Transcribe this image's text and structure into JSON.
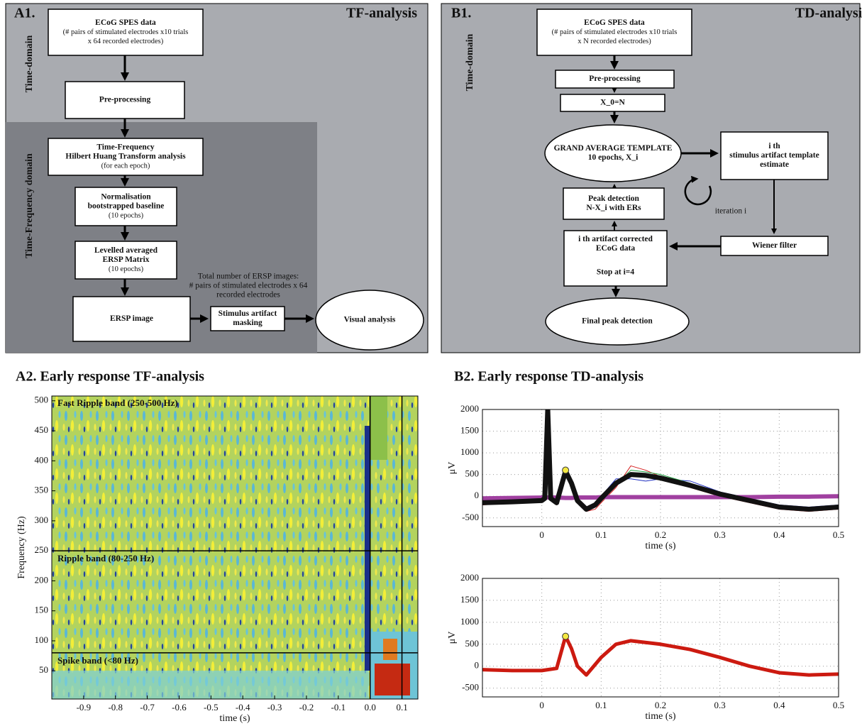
{
  "a1": {
    "label": "A1.",
    "title": "TF-analysis",
    "regions": [
      "Time-domain",
      "Time-Frequency domain"
    ],
    "nodes": [
      [
        "ECoG SPES data",
        "(# pairs of stimulated electrodes x10 trials",
        "x 64 recorded electrodes)"
      ],
      [
        "Pre-processing"
      ],
      [
        "Time-Frequency",
        "Hilbert Huang Transform analysis",
        "(for each epoch)"
      ],
      [
        "Normalisation",
        "bootstrapped  baseline",
        "(10 epochs)"
      ],
      [
        "Levelled averaged",
        "ERSP Matrix",
        "(10 epochs)"
      ],
      [
        "ERSP image"
      ],
      [
        "Stimulus artifact",
        "masking"
      ],
      [
        "Visual analysis"
      ]
    ],
    "note": [
      "Total number of ERSP images:",
      "# pairs of stimulated electrodes x 64",
      "recorded electrodes"
    ]
  },
  "b1": {
    "label": "B1.",
    "title": "TD-analysis",
    "regions": [
      "Time-domain"
    ],
    "nodes": [
      [
        "ECoG SPES data",
        "(# pairs of stimulated electrodes x10 trials",
        "x N recorded electrodes)"
      ],
      [
        "Pre-processing"
      ],
      [
        "X_0=N"
      ],
      [
        "GRAND AVERAGE TEMPLATE",
        "10 epochs, X_i"
      ],
      [
        "i th",
        "stimulus artifact template",
        "estimate"
      ],
      [
        "Peak detection",
        "N-X_i with ERs"
      ],
      [
        "i th artifact corrected",
        "ECoG data"
      ],
      [
        "Stop  at i=4"
      ],
      [
        "Wiener filter"
      ],
      [
        "Final peak detection"
      ]
    ],
    "annotation": "iteration i"
  },
  "chart_data": [
    {
      "type": "heatmap",
      "title": "A2.  Early response TF-analysis",
      "xlabel": "time (s)",
      "ylabel": "Frequency (Hz)",
      "xlim": [
        -1,
        0.15
      ],
      "ylim": [
        3,
        508
      ],
      "xticks": [
        -0.9,
        -0.8,
        -0.7,
        -0.6,
        -0.5,
        -0.4,
        -0.3,
        -0.2,
        -0.1,
        {
          "value": 0,
          "label": "0.0"
        },
        0.1
      ],
      "yticks": [
        50,
        100,
        150,
        200,
        250,
        300,
        350,
        400,
        450,
        500
      ],
      "hlines": [
        250,
        80
      ],
      "vlines": [
        0,
        0.1
      ],
      "band_labels": [
        "Fast Ripple band (250-500 Hz)",
        "Ripple band (80-250 Hz)",
        "Spike band (<80 Hz)"
      ]
    },
    {
      "type": "line",
      "title": "B2.  Early response TD-analysis",
      "xlabel": "time (s)",
      "ylabel": "μV",
      "xlim": [
        -0.1,
        0.5
      ],
      "ylim": [
        -700,
        2000
      ],
      "xticks": [
        0,
        0.1,
        0.2,
        0.3,
        0.4,
        0.5
      ],
      "yticks": [
        -500,
        0,
        500,
        1000,
        1500,
        2000
      ],
      "grid": true,
      "x": [
        -0.1,
        -0.05,
        0,
        0.005,
        0.01,
        0.015,
        0.025,
        0.04,
        0.05,
        0.06,
        0.075,
        0.09,
        0.1,
        0.125,
        0.15,
        0.175,
        0.2,
        0.25,
        0.3,
        0.35,
        0.4,
        0.45,
        0.5
      ],
      "series": [
        {
          "color": "#d62020",
          "values": [
            -200,
            -150,
            -100,
            -50,
            1800,
            -100,
            -200,
            550,
            250,
            -150,
            -350,
            -300,
            -150,
            200,
            700,
            600,
            450,
            200,
            0,
            -150,
            -300,
            -350,
            -300
          ]
        },
        {
          "color": "#2030c0",
          "values": [
            -120,
            -100,
            -80,
            -40,
            1900,
            -40,
            -100,
            600,
            350,
            -50,
            -250,
            -150,
            0,
            400,
            400,
            350,
            400,
            350,
            100,
            -50,
            -200,
            -250,
            -200
          ]
        },
        {
          "color": "#20a040",
          "values": [
            -160,
            -140,
            -110,
            -60,
            1950,
            -60,
            -140,
            570,
            320,
            -120,
            -320,
            -220,
            -80,
            280,
            600,
            560,
            500,
            300,
            80,
            -80,
            -260,
            -280,
            -220
          ]
        },
        {
          "color": "#20b0b0",
          "values": [
            -140,
            -120,
            -90,
            -50,
            1850,
            -50,
            -120,
            590,
            290,
            -90,
            -280,
            -250,
            -100,
            320,
            520,
            520,
            440,
            280,
            60,
            -120,
            -280,
            -310,
            -260
          ]
        },
        {
          "color": "#a040a0",
          "values": [
            -50,
            -40,
            -30,
            -30,
            -30,
            -30,
            -30,
            -40,
            -40,
            -30,
            -30,
            -30,
            -20,
            -20,
            -20,
            -20,
            -20,
            -20,
            -20,
            -20,
            -10,
            -10,
            0
          ]
        },
        {
          "color": "#111111",
          "values": [
            -150,
            -130,
            -100,
            -50,
            2000,
            -50,
            -150,
            580,
            300,
            -100,
            -300,
            -200,
            -50,
            300,
            500,
            480,
            420,
            250,
            50,
            -100,
            -250,
            -300,
            -250
          ]
        }
      ],
      "peaks": {
        "x": [
          0.04
        ],
        "values": [
          600
        ],
        "color": "#f4e842"
      }
    },
    {
      "type": "line",
      "xlabel": "time (s)",
      "ylabel": "μV",
      "xlim": [
        -0.1,
        0.5
      ],
      "ylim": [
        -700,
        2000
      ],
      "xticks": [
        0,
        0.1,
        0.2,
        0.3,
        0.4,
        0.5
      ],
      "yticks": [
        -500,
        0,
        500,
        1000,
        1500,
        2000
      ],
      "grid": true,
      "x": [
        -0.1,
        -0.05,
        0,
        0.01,
        0.025,
        0.04,
        0.05,
        0.06,
        0.075,
        0.1,
        0.125,
        0.15,
        0.2,
        0.25,
        0.3,
        0.35,
        0.4,
        0.45,
        0.5
      ],
      "series": [
        {
          "color": "#cc1a10",
          "values": [
            -80,
            -100,
            -100,
            -80,
            -50,
            680,
            400,
            0,
            -200,
            200,
            500,
            580,
            500,
            380,
            200,
            0,
            -150,
            -200,
            -180
          ]
        }
      ],
      "peaks": {
        "x": [
          0.04
        ],
        "values": [
          680
        ],
        "color": "#f4e842"
      }
    }
  ]
}
